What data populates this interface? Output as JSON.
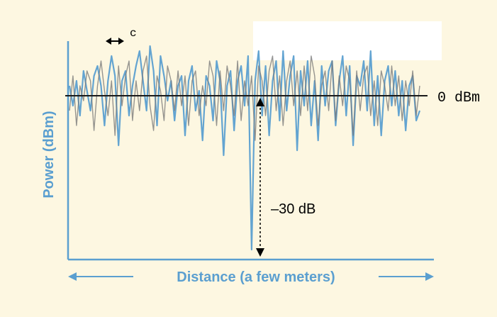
{
  "chart_data": {
    "type": "line",
    "xlabel": "Distance (a few meters)",
    "ylabel": "Power (dBm)",
    "reference_level_label": "0 dBm",
    "coherence_label": "c",
    "fade_depth_label": "–30 dB",
    "reference_level_dbm": 0,
    "fade_depth_db": -30,
    "grid": false,
    "x": [
      0,
      1,
      2,
      3,
      4,
      5,
      6,
      7,
      8,
      9,
      10,
      11,
      12,
      13,
      14,
      15,
      16,
      17,
      18,
      19,
      20,
      21,
      22,
      23,
      24,
      25,
      26,
      27,
      28,
      29,
      30,
      31,
      32,
      33,
      34,
      35,
      36,
      37,
      38,
      39,
      40,
      41,
      42,
      43,
      44,
      45,
      46,
      47,
      48,
      49,
      50,
      51,
      52,
      53,
      54,
      55,
      56,
      57,
      58,
      59,
      60,
      61,
      62,
      63,
      64,
      65,
      66,
      67,
      68,
      69,
      70,
      71,
      72,
      73,
      74,
      75,
      76,
      77,
      78,
      79,
      80,
      81,
      82,
      83,
      84,
      85,
      86,
      87,
      88,
      89,
      90,
      91,
      92,
      93,
      94,
      95,
      96,
      97,
      98,
      99,
      100
    ],
    "series": [
      {
        "values": [
          2,
          -2,
          3,
          -4,
          5,
          1,
          -3,
          4,
          6,
          2,
          -6,
          3,
          8,
          4,
          -10,
          3,
          5,
          -4,
          2,
          6,
          9,
          3,
          -3,
          10,
          5,
          -6,
          8,
          4,
          -1,
          3,
          -5,
          2,
          4,
          -8,
          3,
          6,
          -3,
          1,
          -9,
          4,
          2,
          -5,
          7,
          3,
          -12,
          2,
          5,
          -7,
          3,
          6,
          -2,
          8,
          -31,
          3,
          9,
          -4,
          6,
          -8,
          3,
          7,
          -5,
          9,
          -3,
          4,
          8,
          -11,
          5,
          -2,
          7,
          -6,
          3,
          -9,
          6,
          -2,
          5,
          7,
          -6,
          3,
          8,
          -4,
          6,
          -10,
          4,
          2,
          7,
          -3,
          9,
          -6,
          4,
          -8,
          3,
          6,
          -2,
          5,
          -4,
          3,
          -7,
          2,
          4,
          -5,
          -3
        ],
        "color": "#5b9fd0"
      },
      {
        "values": [
          -3,
          4,
          -6,
          2,
          -1,
          5,
          3,
          -7,
          2,
          7,
          1,
          -4,
          3,
          -8,
          6,
          -2,
          4,
          7,
          -5,
          3,
          -3,
          5,
          8,
          -2,
          -7,
          4,
          1,
          -5,
          6,
          3,
          -3,
          5,
          -2,
          4,
          -6,
          3,
          5,
          -4,
          2,
          -2,
          7,
          4,
          -6,
          5,
          -3,
          6,
          2,
          -4,
          7,
          -5,
          3,
          -2,
          4,
          -9,
          6,
          3,
          -4,
          5,
          8,
          -3,
          4,
          -6,
          3,
          7,
          -2,
          5,
          -4,
          6,
          -3,
          8,
          4,
          -6,
          2,
          5,
          -3,
          7,
          -5,
          4,
          -2,
          6,
          3,
          -8,
          5,
          -3,
          4,
          6,
          -4,
          3,
          -6,
          5,
          2,
          -3,
          6,
          -2,
          4,
          -5,
          3,
          -2,
          5,
          -4,
          2
        ],
        "color": "#7a7a7a"
      }
    ]
  }
}
